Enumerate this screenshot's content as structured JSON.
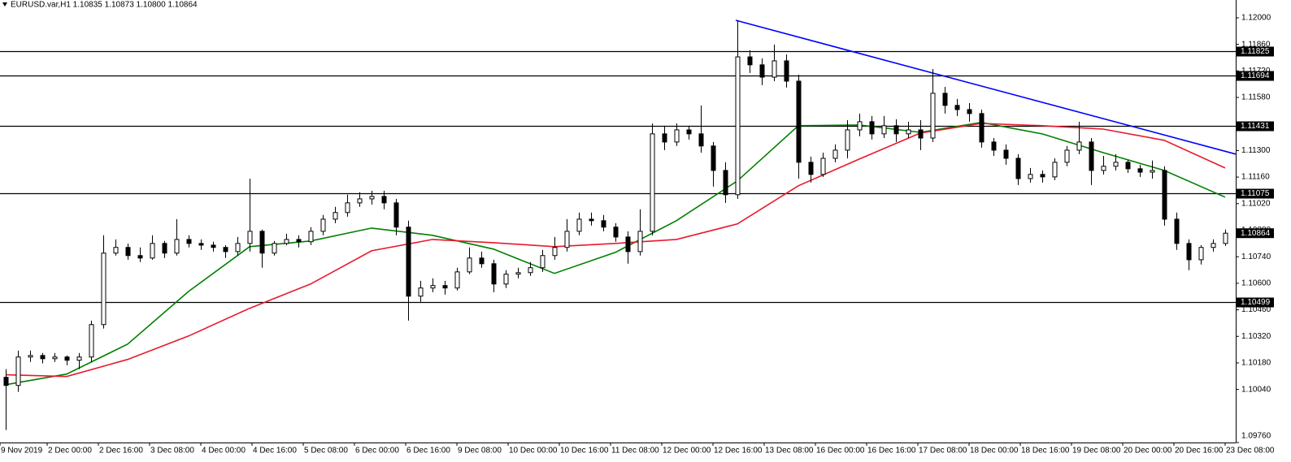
{
  "chart_data": {
    "type": "candlestick",
    "title": "EURUSD.var,H1  1.10835 1.10873 1.10800 1.10864",
    "up_color": "#ffffff",
    "down_color": "#000000",
    "wick_color": "#000000",
    "candles": [
      [
        1.10104,
        1.10147,
        1.09826,
        1.10061
      ],
      [
        1.10061,
        1.10245,
        1.10027,
        1.10211
      ],
      [
        1.10211,
        1.10245,
        1.10185,
        1.10219
      ],
      [
        1.10219,
        1.10232,
        1.10177,
        1.10202
      ],
      [
        1.10202,
        1.10232,
        1.10185,
        1.10211
      ],
      [
        1.10211,
        1.10219,
        1.10168,
        1.10194
      ],
      [
        1.10194,
        1.10232,
        1.10147,
        1.10211
      ],
      [
        1.10211,
        1.10403,
        1.10185,
        1.10382
      ],
      [
        1.10382,
        1.10853,
        1.10361,
        1.10759
      ],
      [
        1.10759,
        1.10831,
        1.10746,
        1.10789
      ],
      [
        1.10789,
        1.1081,
        1.10724,
        1.10746
      ],
      [
        1.10746,
        1.10789,
        1.10712,
        1.10733
      ],
      [
        1.10733,
        1.10853,
        1.10724,
        1.1081
      ],
      [
        1.1081,
        1.10823,
        1.10733,
        1.10759
      ],
      [
        1.10759,
        1.10938,
        1.10746,
        1.10831
      ],
      [
        1.10831,
        1.10853,
        1.10789,
        1.1081
      ],
      [
        1.1081,
        1.10831,
        1.10776,
        1.10801
      ],
      [
        1.10801,
        1.10819,
        1.10767,
        1.10789
      ],
      [
        1.10789,
        1.10801,
        1.10733,
        1.10767
      ],
      [
        1.10767,
        1.10844,
        1.10746,
        1.1081
      ],
      [
        1.1081,
        1.11152,
        1.10767,
        1.10874
      ],
      [
        1.10874,
        1.10883,
        1.10682,
        1.10759
      ],
      [
        1.10759,
        1.10823,
        1.10746,
        1.1081
      ],
      [
        1.1081,
        1.10861,
        1.10801,
        1.10831
      ],
      [
        1.10831,
        1.10853,
        1.10789,
        1.10819
      ],
      [
        1.10819,
        1.10896,
        1.10801,
        1.10874
      ],
      [
        1.10874,
        1.1096,
        1.10853,
        1.10938
      ],
      [
        1.10938,
        1.11003,
        1.10917,
        1.10973
      ],
      [
        1.10973,
        1.11067,
        1.10951,
        1.11024
      ],
      [
        1.11024,
        1.1108,
        1.11003,
        1.11045
      ],
      [
        1.11045,
        1.11088,
        1.11015,
        1.11058
      ],
      [
        1.11058,
        1.11088,
        1.1099,
        1.11024
      ],
      [
        1.11024,
        1.11045,
        1.10853,
        1.10896
      ],
      [
        1.10896,
        1.1093,
        1.10403,
        1.10532
      ],
      [
        1.10532,
        1.10613,
        1.10502,
        1.10575
      ],
      [
        1.10575,
        1.10626,
        1.10553,
        1.10588
      ],
      [
        1.10588,
        1.10613,
        1.1054,
        1.10575
      ],
      [
        1.10575,
        1.10682,
        1.10562,
        1.1066
      ],
      [
        1.1066,
        1.10789,
        1.10648,
        1.10733
      ],
      [
        1.10733,
        1.10767,
        1.10682,
        1.10703
      ],
      [
        1.10703,
        1.10724,
        1.10553,
        1.10596
      ],
      [
        1.10596,
        1.10669,
        1.10575,
        1.10648
      ],
      [
        1.10648,
        1.10682,
        1.10626,
        1.10656
      ],
      [
        1.10656,
        1.10712,
        1.10639,
        1.10682
      ],
      [
        1.10682,
        1.10776,
        1.1066,
        1.10746
      ],
      [
        1.10746,
        1.10844,
        1.10724,
        1.10789
      ],
      [
        1.10789,
        1.10938,
        1.10767,
        1.10874
      ],
      [
        1.10874,
        1.10973,
        1.10853,
        1.10938
      ],
      [
        1.10938,
        1.10973,
        1.10904,
        1.1093
      ],
      [
        1.1093,
        1.1096,
        1.10874,
        1.10896
      ],
      [
        1.10896,
        1.10917,
        1.10819,
        1.10844
      ],
      [
        1.10844,
        1.10874,
        1.10703,
        1.10767
      ],
      [
        1.10767,
        1.1099,
        1.10746,
        1.10874
      ],
      [
        1.10874,
        1.11443,
        1.10853,
        1.11388
      ],
      [
        1.11388,
        1.11431,
        1.11302,
        1.11345
      ],
      [
        1.11345,
        1.11443,
        1.11324,
        1.11409
      ],
      [
        1.11409,
        1.11431,
        1.11358,
        1.11388
      ],
      [
        1.11388,
        1.11538,
        1.11289,
        1.11324
      ],
      [
        1.11324,
        1.11345,
        1.1111,
        1.11195
      ],
      [
        1.11195,
        1.11238,
        1.11024,
        1.11067
      ],
      [
        1.11067,
        1.11987,
        1.11045,
        1.11794
      ],
      [
        1.11794,
        1.11829,
        1.11709,
        1.11752
      ],
      [
        1.11752,
        1.11786,
        1.11645,
        1.11687
      ],
      [
        1.11687,
        1.11859,
        1.11666,
        1.11773
      ],
      [
        1.11773,
        1.11807,
        1.11632,
        1.11666
      ],
      [
        1.11666,
        1.117,
        1.11152,
        1.11238
      ],
      [
        1.11238,
        1.11268,
        1.11131,
        1.11174
      ],
      [
        1.11174,
        1.11289,
        1.11161,
        1.11259
      ],
      [
        1.11259,
        1.11332,
        1.11238,
        1.11302
      ],
      [
        1.11302,
        1.1146,
        1.11259,
        1.11409
      ],
      [
        1.11409,
        1.11495,
        1.11375,
        1.11452
      ],
      [
        1.11452,
        1.11482,
        1.11358,
        1.11388
      ],
      [
        1.11388,
        1.11482,
        1.11366,
        1.11431
      ],
      [
        1.11431,
        1.11465,
        1.11345,
        1.11388
      ],
      [
        1.11388,
        1.11452,
        1.11366,
        1.11409
      ],
      [
        1.11409,
        1.1146,
        1.11302,
        1.11366
      ],
      [
        1.11366,
        1.1173,
        1.11345,
        1.11602
      ],
      [
        1.11602,
        1.11636,
        1.11495,
        1.11538
      ],
      [
        1.11538,
        1.11572,
        1.11482,
        1.11516
      ],
      [
        1.11516,
        1.1155,
        1.11452,
        1.11495
      ],
      [
        1.11495,
        1.11516,
        1.11315,
        1.11345
      ],
      [
        1.11345,
        1.11366,
        1.11272,
        1.11302
      ],
      [
        1.11302,
        1.11332,
        1.11225,
        1.11259
      ],
      [
        1.11259,
        1.11281,
        1.11118,
        1.11152
      ],
      [
        1.11152,
        1.11208,
        1.11131,
        1.11174
      ],
      [
        1.11174,
        1.11195,
        1.11131,
        1.11161
      ],
      [
        1.11161,
        1.11259,
        1.11144,
        1.11238
      ],
      [
        1.11238,
        1.11324,
        1.11217,
        1.11302
      ],
      [
        1.11302,
        1.11452,
        1.11281,
        1.11345
      ],
      [
        1.11345,
        1.11366,
        1.11118,
        1.11195
      ],
      [
        1.11195,
        1.11272,
        1.11174,
        1.11217
      ],
      [
        1.11217,
        1.11281,
        1.11195,
        1.11238
      ],
      [
        1.11238,
        1.11251,
        1.11182,
        1.11204
      ],
      [
        1.11204,
        1.11225,
        1.11161,
        1.11186
      ],
      [
        1.11186,
        1.11247,
        1.11152,
        1.11195
      ],
      [
        1.11195,
        1.11217,
        1.10904,
        1.10938
      ],
      [
        1.10938,
        1.10973,
        1.10776,
        1.1081
      ],
      [
        1.1081,
        1.10831,
        1.10669,
        1.10724
      ],
      [
        1.10724,
        1.10801,
        1.10699,
        1.10789
      ],
      [
        1.10789,
        1.10831,
        1.10767,
        1.1081
      ],
      [
        1.1081,
        1.10883,
        1.10797,
        1.10864
      ]
    ],
    "lines": [
      {
        "color": "#008000",
        "x": [
          0,
          5,
          10,
          15,
          20,
          25,
          30,
          35,
          40,
          45,
          50,
          55,
          60,
          65,
          70,
          75,
          80,
          85,
          90,
          95,
          100
        ],
        "values": [
          1.10065,
          1.10121,
          1.10279,
          1.10557,
          1.10793,
          1.10823,
          1.10891,
          1.10853,
          1.1078,
          1.10652,
          1.10763,
          1.1093,
          1.1114,
          1.11431,
          1.11435,
          1.11396,
          1.11448,
          1.11388,
          1.11289,
          1.11195,
          1.11054
        ]
      },
      {
        "color": "#e8192c",
        "x": [
          0,
          5,
          10,
          15,
          20,
          25,
          30,
          35,
          40,
          45,
          50,
          55,
          60,
          65,
          70,
          75,
          80,
          85,
          90,
          95,
          100
        ],
        "values": [
          1.10117,
          1.10108,
          1.10198,
          1.10322,
          1.10468,
          1.10596,
          1.10771,
          1.10831,
          1.10814,
          1.10793,
          1.1081,
          1.10831,
          1.10913,
          1.11114,
          1.11255,
          1.11392,
          1.11443,
          1.11431,
          1.11413,
          1.11354,
          1.11208
        ]
      },
      {
        "color": "#0000ff",
        "x": [
          59.87,
          100.87
        ],
        "values": [
          1.11987,
          1.11281
        ]
      }
    ],
    "levels": [
      1.11825,
      1.11694,
      1.11431,
      1.11075,
      1.10499
    ],
    "last_price": 1.10864,
    "xlim": [
      -0.467,
      100.867
    ],
    "ylim": [
      1.0976,
      1.12094
    ],
    "yticks": [
      {
        "value": 1.12,
        "label": "1.12000"
      },
      {
        "value": 1.1186,
        "label": "1.11860"
      },
      {
        "value": 1.1172,
        "label": "1.11720"
      },
      {
        "value": 1.1158,
        "label": "1.11580"
      },
      {
        "value": 1.113,
        "label": "1.11300"
      },
      {
        "value": 1.1116,
        "label": "1.11160"
      },
      {
        "value": 1.1102,
        "label": "1.11020"
      },
      {
        "value": 1.1088,
        "label": "1.10880"
      },
      {
        "value": 1.1074,
        "label": "1.10740"
      },
      {
        "value": 1.106,
        "label": "1.10600"
      },
      {
        "value": 1.1046,
        "label": "1.10460"
      },
      {
        "value": 1.1032,
        "label": "1.10320"
      },
      {
        "value": 1.1018,
        "label": "1.10180"
      },
      {
        "value": 1.1004,
        "label": "1.10040"
      },
      {
        "value": 1.0976,
        "label": "1.09760"
      }
    ],
    "xticks": [
      {
        "value": -0.467,
        "label": "9 Nov 2019"
      },
      {
        "value": 3.4,
        "label": "2 Dec 00:00"
      },
      {
        "value": 7.6,
        "label": "2 Dec 16:00"
      },
      {
        "value": 11.8,
        "label": "3 Dec 08:00"
      },
      {
        "value": 16,
        "label": "4 Dec 00:00"
      },
      {
        "value": 20.2,
        "label": "4 Dec 16:00"
      },
      {
        "value": 24.4,
        "label": "5 Dec 08:00"
      },
      {
        "value": 28.6,
        "label": "6 Dec 00:00"
      },
      {
        "value": 32.8,
        "label": "6 Dec 16:00"
      },
      {
        "value": 37,
        "label": "9 Dec 08:00"
      },
      {
        "value": 41.2,
        "label": "10 Dec 00:00"
      },
      {
        "value": 45.4,
        "label": "10 Dec 16:00"
      },
      {
        "value": 49.6,
        "label": "11 Dec 08:00"
      },
      {
        "value": 53.8,
        "label": "12 Dec 00:00"
      },
      {
        "value": 58,
        "label": "12 Dec 16:00"
      },
      {
        "value": 62.2,
        "label": "13 Dec 08:00"
      },
      {
        "value": 66.4,
        "label": "16 Dec 00:00"
      },
      {
        "value": 70.6,
        "label": "16 Dec 16:00"
      },
      {
        "value": 74.8,
        "label": "17 Dec 08:00"
      },
      {
        "value": 79,
        "label": "18 Dec 00:00"
      },
      {
        "value": 83.2,
        "label": "18 Dec 16:00"
      },
      {
        "value": 87.4,
        "label": "19 Dec 08:00"
      },
      {
        "value": 91.6,
        "label": "20 Dec 00:00"
      },
      {
        "value": 95.8,
        "label": "20 Dec 16:00"
      },
      {
        "value": 100,
        "label": "23 Dec 08:00"
      }
    ]
  }
}
